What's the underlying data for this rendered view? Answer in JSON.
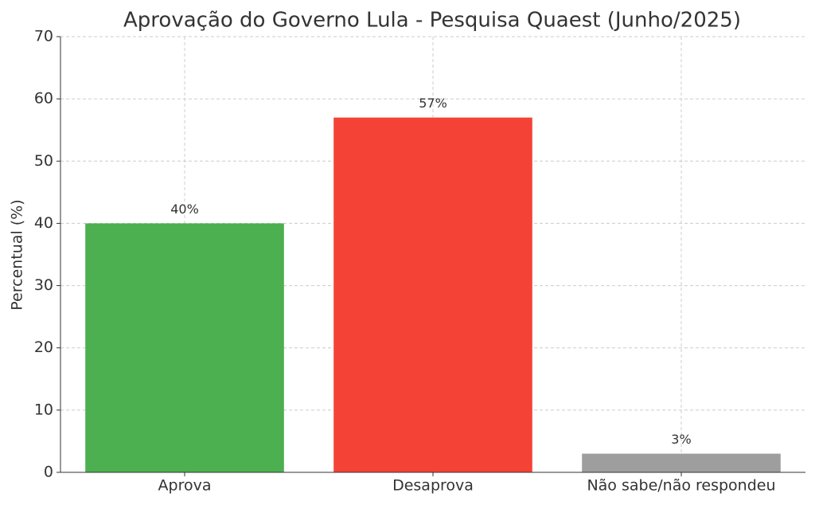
{
  "chart_data": {
    "type": "bar",
    "title": "Aprovação do Governo Lula - Pesquisa Quaest (Junho/2025)",
    "y_label": "Percentual (%)",
    "categories": [
      "Aprova",
      "Desaprova",
      "Não sabe/não respondeu"
    ],
    "values": [
      40,
      57,
      3
    ],
    "value_labels": [
      "40%",
      "57%",
      "3%"
    ],
    "colors": [
      "#4caf50",
      "#f44336",
      "#9e9e9e"
    ],
    "ylim": [
      0,
      70
    ],
    "yticks": [
      0,
      10,
      20,
      30,
      40,
      50,
      60,
      70
    ],
    "grid": true
  }
}
